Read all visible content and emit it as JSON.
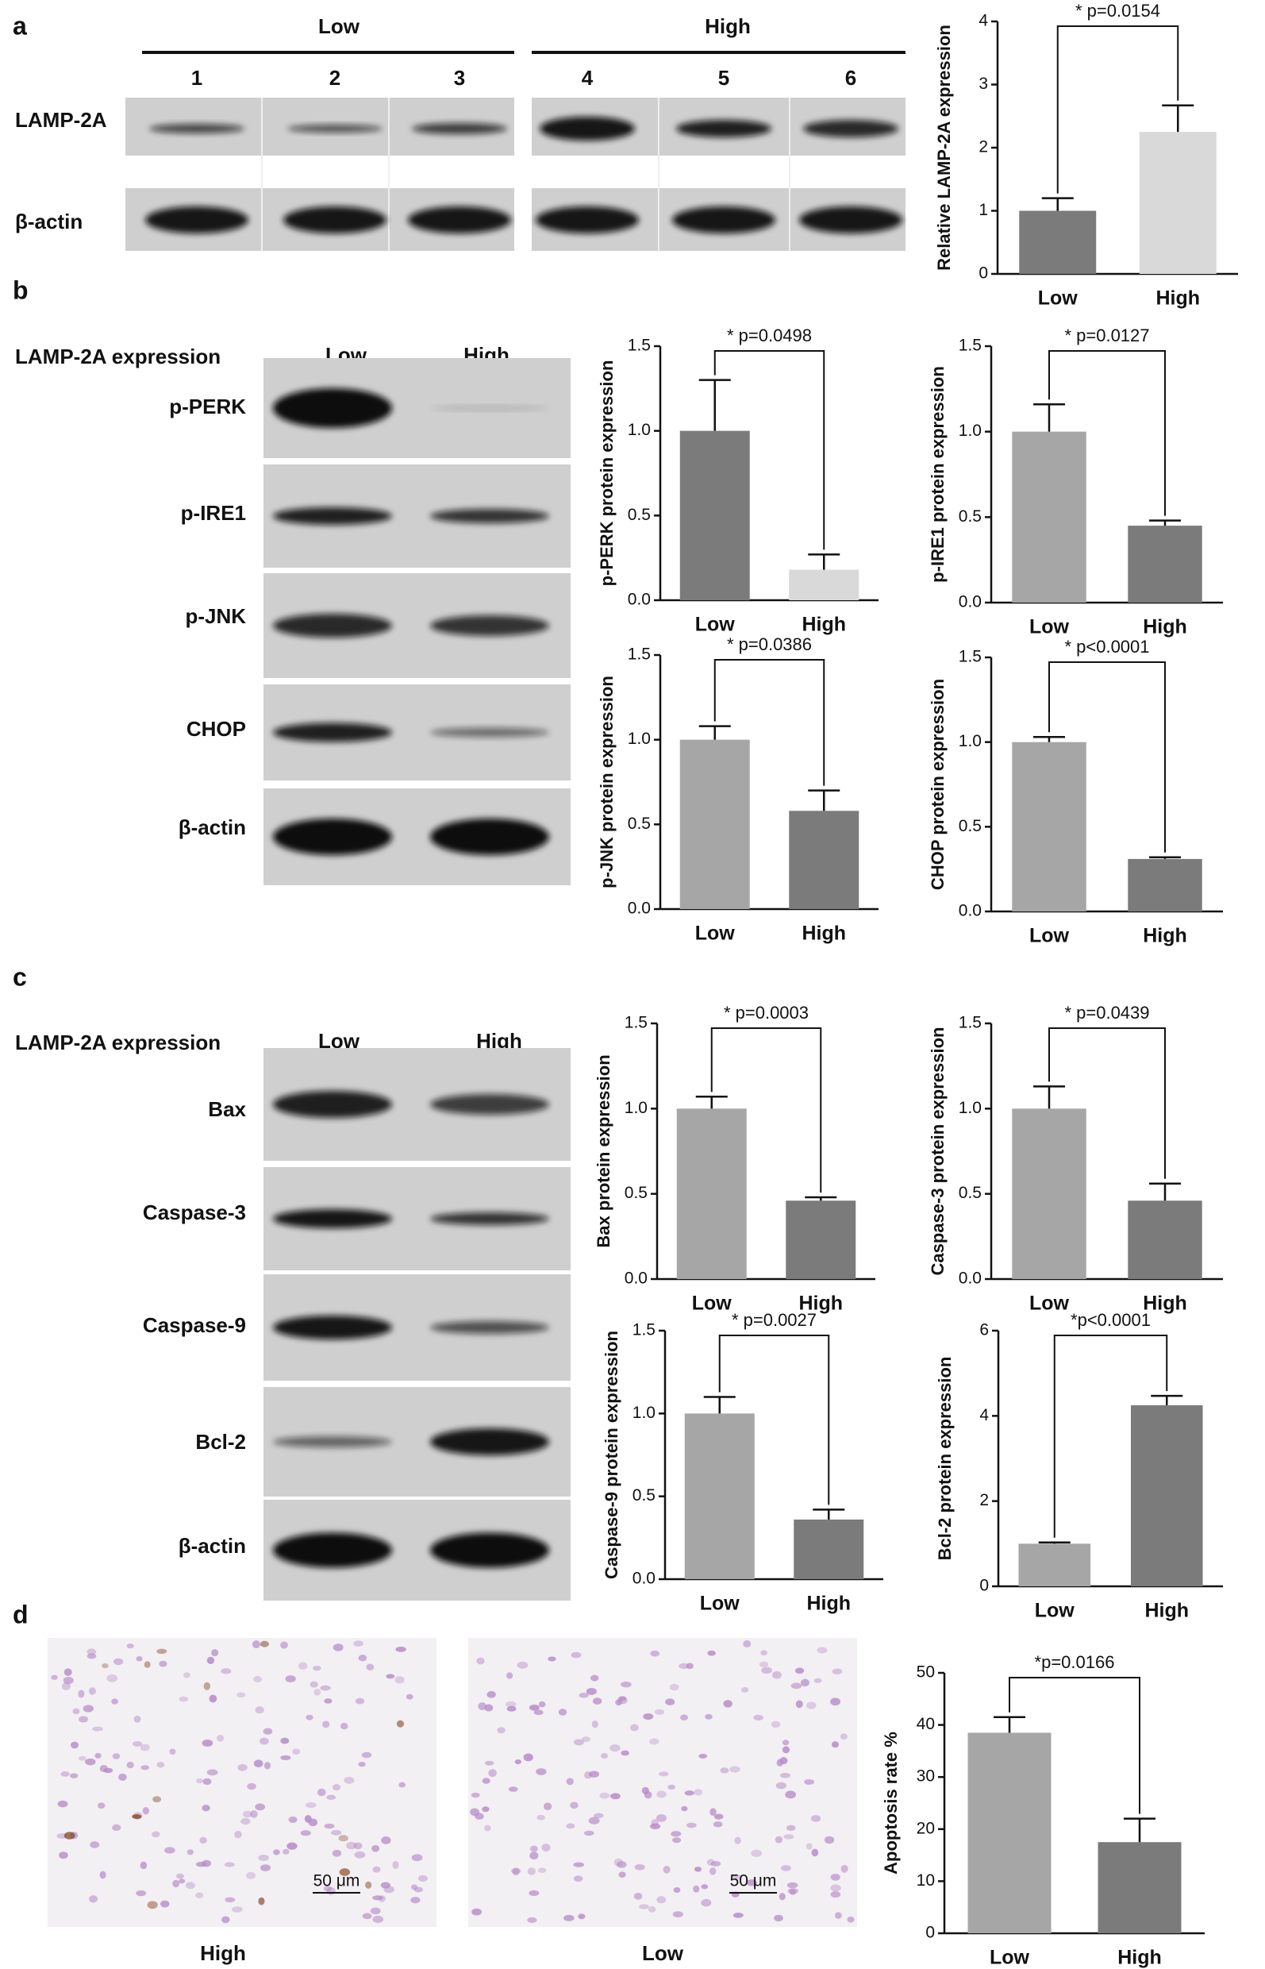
{
  "figure": {
    "panel_labels": [
      "a",
      "b",
      "c",
      "d"
    ],
    "a_blot": {
      "groups": [
        "Low",
        "High"
      ],
      "lanes": [
        "1",
        "2",
        "3",
        "4",
        "5",
        "6"
      ],
      "rows": [
        "LAMP-2A",
        "β-actin"
      ]
    },
    "b_blot": {
      "header": "LAMP-2A expression",
      "columns": [
        "Low",
        "High"
      ],
      "rows": [
        "p-PERK",
        "p-IRE1",
        "p-JNK",
        "CHOP",
        "β-actin"
      ]
    },
    "c_blot": {
      "header": "LAMP-2A expression",
      "columns": [
        "Low",
        "High"
      ],
      "rows": [
        "Bax",
        "Caspase-3",
        "Caspase-9",
        "Bcl-2",
        "β-actin"
      ]
    },
    "d_images": {
      "labels": [
        "High",
        "Low"
      ],
      "scale_bar": "50 μm"
    }
  },
  "chart_data": [
    {
      "type": "bar",
      "ylabel": "Relative LAMP-2A expression",
      "annotation": "* p=0.0154",
      "categories": [
        "Low",
        "High"
      ],
      "values": [
        1.0,
        2.25
      ],
      "errors": [
        0.2,
        0.42
      ],
      "colors": [
        "#7b7b7b",
        "#d9d9d9"
      ],
      "ylim": [
        0,
        4
      ],
      "yticks": [
        0,
        1,
        2,
        3,
        4
      ]
    },
    {
      "type": "bar",
      "ylabel": "p-PERK protein expression",
      "annotation": "* p=0.0498",
      "categories": [
        "Low",
        "High"
      ],
      "values": [
        1.0,
        0.18
      ],
      "errors": [
        0.3,
        0.09
      ],
      "colors": [
        "#7b7b7b",
        "#d9d9d9"
      ],
      "ylim": [
        0,
        1.5
      ],
      "yticks": [
        {
          "value": 0,
          "label": "0.0"
        },
        0.5,
        {
          "value": 1,
          "label": "1.0"
        },
        1.5
      ]
    },
    {
      "type": "bar",
      "ylabel": "p-IRE1 protein expression",
      "annotation": "* p=0.0127",
      "categories": [
        "Low",
        "High"
      ],
      "values": [
        1.0,
        0.45
      ],
      "errors": [
        0.16,
        0.03
      ],
      "colors": [
        "#a6a6a6",
        "#7b7b7b"
      ],
      "ylim": [
        0,
        1.5
      ],
      "yticks": [
        {
          "value": 0,
          "label": "0.0"
        },
        0.5,
        {
          "value": 1,
          "label": "1.0"
        },
        1.5
      ]
    },
    {
      "type": "bar",
      "ylabel": "p-JNK protein expression",
      "annotation": "* p=0.0386",
      "categories": [
        "Low",
        "High"
      ],
      "values": [
        1.0,
        0.58
      ],
      "errors": [
        0.08,
        0.12
      ],
      "colors": [
        "#a6a6a6",
        "#7b7b7b"
      ],
      "ylim": [
        0,
        1.5
      ],
      "yticks": [
        {
          "value": 0,
          "label": "0.0"
        },
        0.5,
        {
          "value": 1,
          "label": "1.0"
        },
        1.5
      ]
    },
    {
      "type": "bar",
      "ylabel": "CHOP protein expression",
      "annotation": "* p<0.0001",
      "categories": [
        "Low",
        "High"
      ],
      "values": [
        1.0,
        0.31
      ],
      "errors": [
        0.03,
        0.01
      ],
      "colors": [
        "#a6a6a6",
        "#7b7b7b"
      ],
      "ylim": [
        0,
        1.5
      ],
      "yticks": [
        {
          "value": 0,
          "label": "0.0"
        },
        0.5,
        {
          "value": 1,
          "label": "1.0"
        },
        1.5
      ]
    },
    {
      "type": "bar",
      "ylabel": "Bax protein expression",
      "annotation": "* p=0.0003",
      "categories": [
        "Low",
        "High"
      ],
      "values": [
        1.0,
        0.46
      ],
      "errors": [
        0.07,
        0.02
      ],
      "colors": [
        "#a6a6a6",
        "#7b7b7b"
      ],
      "ylim": [
        0,
        1.5
      ],
      "yticks": [
        {
          "value": 0,
          "label": "0.0"
        },
        0.5,
        {
          "value": 1,
          "label": "1.0"
        },
        1.5
      ]
    },
    {
      "type": "bar",
      "ylabel": "Caspase-3 protein expression",
      "annotation": "* p=0.0439",
      "categories": [
        "Low",
        "High"
      ],
      "values": [
        1.0,
        0.46
      ],
      "errors": [
        0.13,
        0.1
      ],
      "colors": [
        "#a6a6a6",
        "#7b7b7b"
      ],
      "ylim": [
        0,
        1.5
      ],
      "yticks": [
        {
          "value": 0,
          "label": "0.0"
        },
        0.5,
        {
          "value": 1,
          "label": "1.0"
        },
        1.5
      ]
    },
    {
      "type": "bar",
      "ylabel": "Caspase-9 protein expression",
      "annotation": "* p=0.0027",
      "categories": [
        "Low",
        "High"
      ],
      "values": [
        1.0,
        0.36
      ],
      "errors": [
        0.1,
        0.06
      ],
      "colors": [
        "#a6a6a6",
        "#7b7b7b"
      ],
      "ylim": [
        0,
        1.5
      ],
      "yticks": [
        {
          "value": 0,
          "label": "0.0"
        },
        0.5,
        {
          "value": 1,
          "label": "1.0"
        },
        1.5
      ]
    },
    {
      "type": "bar",
      "ylabel": "Bcl-2 protein expression",
      "annotation": "*p<0.0001",
      "categories": [
        "Low",
        "High"
      ],
      "values": [
        1.0,
        4.25
      ],
      "errors": [
        0.03,
        0.22
      ],
      "colors": [
        "#a6a6a6",
        "#7b7b7b"
      ],
      "ylim": [
        0,
        6
      ],
      "yticks": [
        0,
        2,
        4,
        6
      ]
    },
    {
      "type": "bar",
      "ylabel": "Apoptosis rate %",
      "annotation": "*p=0.0166",
      "categories": [
        "Low",
        "High"
      ],
      "values": [
        38.5,
        17.5
      ],
      "errors": [
        3,
        4.5
      ],
      "colors": [
        "#a6a6a6",
        "#7b7b7b"
      ],
      "ylim": [
        0,
        50
      ],
      "yticks": [
        0,
        10,
        20,
        30,
        40,
        50
      ]
    }
  ]
}
